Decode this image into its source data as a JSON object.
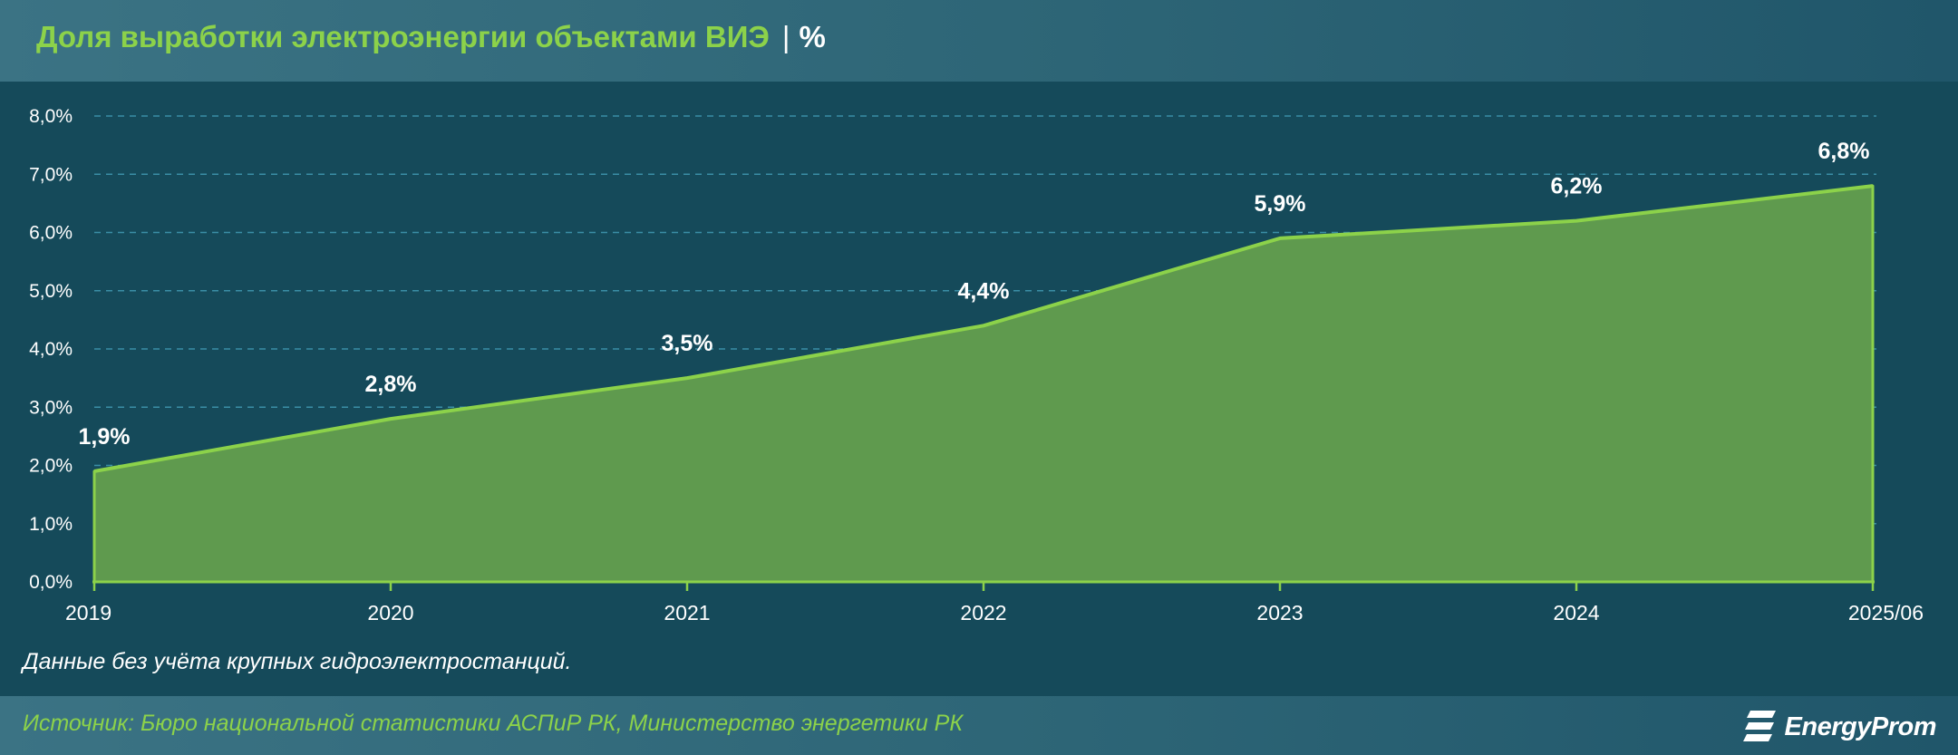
{
  "header": {
    "title": "Доля выработки электроэнергии объектами ВИЭ",
    "separator": "|",
    "unit": "%"
  },
  "chart_data": {
    "type": "area",
    "title": "Доля выработки электроэнергии объектами ВИЭ",
    "unit": "%",
    "categories": [
      "2019",
      "2020",
      "2021",
      "2022",
      "2023",
      "2024",
      "2025/06"
    ],
    "values": [
      1.9,
      2.8,
      3.5,
      4.4,
      5.9,
      6.2,
      6.8
    ],
    "data_labels": [
      "1,9%",
      "2,8%",
      "3,5%",
      "4,4%",
      "5,9%",
      "6,2%",
      "6,8%"
    ],
    "ylim": [
      0,
      8
    ],
    "yticks": [
      0,
      1,
      2,
      3,
      4,
      5,
      6,
      7,
      8
    ],
    "ytick_labels": [
      "0,0%",
      "1,0%",
      "2,0%",
      "3,0%",
      "4,0%",
      "5,0%",
      "6,0%",
      "7,0%",
      "8,0%"
    ],
    "grid": true,
    "legend": "none",
    "colors": {
      "fill": "#5f9a4e",
      "line": "#8cd24a",
      "grid": "#3a8ea6",
      "axis": "#8cd24a"
    }
  },
  "note": "Данные без учёта крупных гидроэлектростанций.",
  "footer": {
    "source": "Источник: Бюро национальной статистики АСПиР РК, Министерство энергетики РК",
    "logo_text": "EnergyProm"
  }
}
